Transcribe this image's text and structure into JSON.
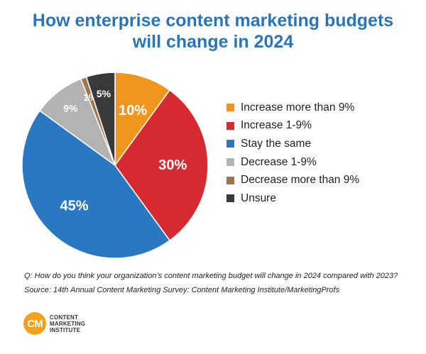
{
  "title_line1": "How enterprise content marketing budgets",
  "title_line2": "will change in 2024",
  "chart_data": {
    "type": "pie",
    "title": "How enterprise content marketing budgets will change in 2024",
    "categories": [
      "Increase more than 9%",
      "Increase 1-9%",
      "Stay the same",
      "Decrease 1-9%",
      "Decrease more than 9%",
      "Unsure"
    ],
    "values": [
      10,
      30,
      45,
      9,
      1,
      5
    ],
    "labels": [
      "10%",
      "30%",
      "45%",
      "9%",
      "1%",
      "5%"
    ],
    "colors": [
      "#f0961f",
      "#d52b30",
      "#2a78c2",
      "#b3b3b3",
      "#a0744c",
      "#3a3a3c"
    ],
    "legend": "right"
  },
  "question": "Q: How do you think your organization’s content marketing budget will change in 2024 compared with 2023?",
  "source": "Source: 14th Annual Content Marketing Survey: Content Marketing Institute/MarketingProfs",
  "logo": {
    "mark": "CM",
    "line1": "CONTENT",
    "line2": "MARKETING",
    "line3": "INSTITUTE"
  }
}
